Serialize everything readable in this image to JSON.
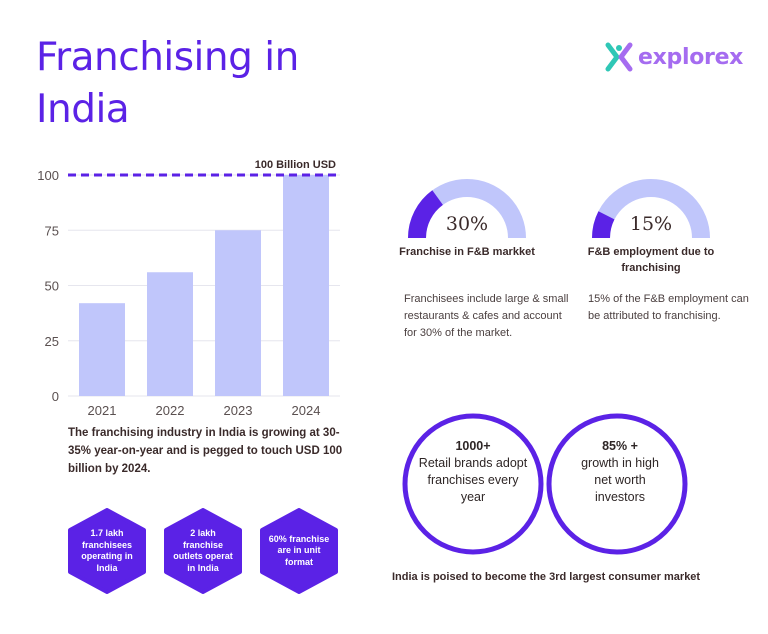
{
  "title": "Franchising in India",
  "brand": {
    "name": "explorex",
    "logo_icon": "explorex-x-icon",
    "colors": {
      "teal": "#2fc7b6",
      "purple": "#a56cf0"
    }
  },
  "colors": {
    "primary": "#5b22e6",
    "bar": "#c0c6fb",
    "text": "#3a2a2a"
  },
  "chart_data": {
    "type": "bar",
    "categories": [
      "2021",
      "2022",
      "2023",
      "2024"
    ],
    "values": [
      42,
      56,
      75,
      100
    ],
    "ylim": [
      0,
      100
    ],
    "yticks": [
      0,
      25,
      50,
      75,
      100
    ],
    "grid": true,
    "reference_line": {
      "value": 100,
      "label": "100 Billion USD"
    },
    "title": "",
    "xlabel": "",
    "ylabel": ""
  },
  "chart_caption": "The franchising industry in India is growing at 30-35% year-on-year and is pegged to touch USD 100 billion by 2024.",
  "hexagons": [
    {
      "text": "1.7 lakh franchisees operating in India"
    },
    {
      "text": "2 lakh franchise outlets operat in India"
    },
    {
      "text": "60% franchise are in unit format"
    }
  ],
  "gauges": [
    {
      "value_text": "30%",
      "fraction": 0.3,
      "label": "Franchise in F&B markket",
      "description": "Franchisees include large & small restaurants & cafes and account for 30% of the market."
    },
    {
      "value_text": "15%",
      "fraction": 0.15,
      "label": "F&B employment due to franchising",
      "description": "15% of the F&B employment can be attributed to franchising."
    }
  ],
  "venn": {
    "left": {
      "headline": "1000+",
      "body": "Retail brands adopt franchises every year"
    },
    "right": {
      "headline": "85% +",
      "body": "growth in high net worth investors"
    }
  },
  "bottom_caption": "India is poised to become the 3rd largest consumer market"
}
